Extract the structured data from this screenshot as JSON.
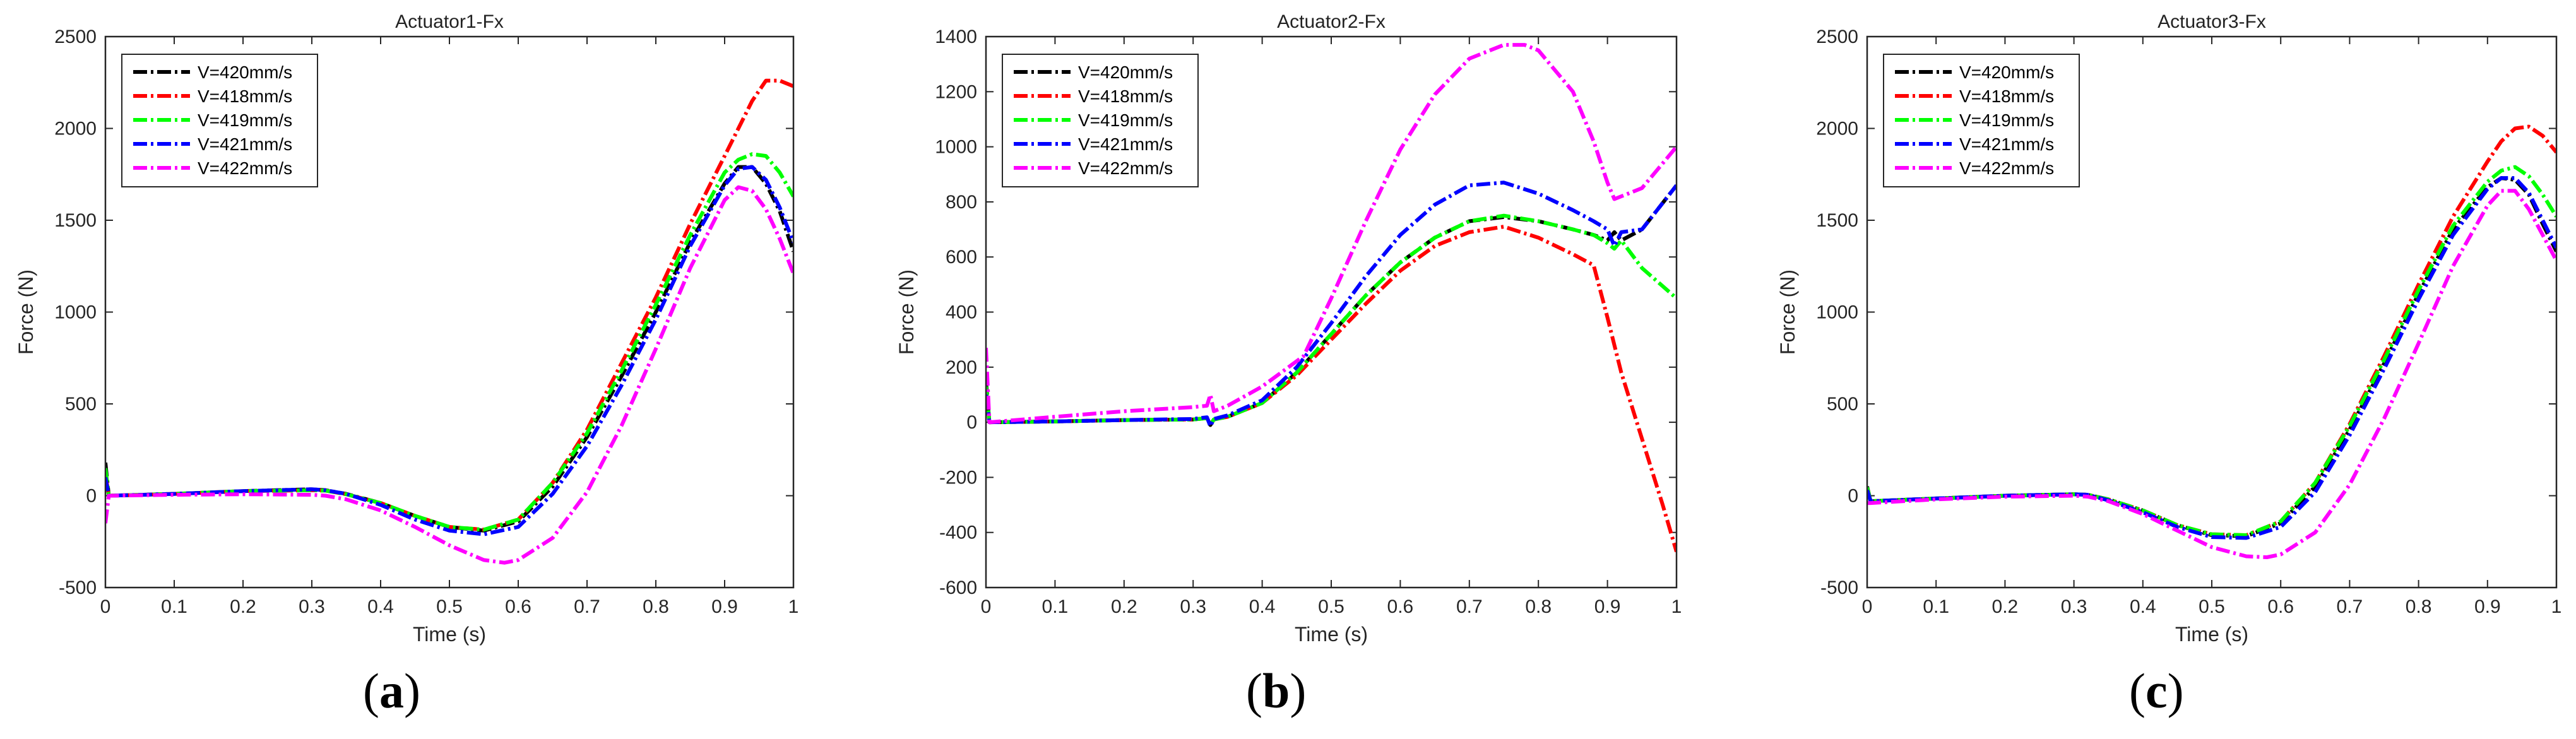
{
  "figure": {
    "captions": [
      {
        "letter": "a",
        "open": "(",
        "close": ")"
      },
      {
        "letter": "b",
        "open": "(",
        "close": ")"
      },
      {
        "letter": "c",
        "open": "(",
        "close": ")"
      }
    ]
  },
  "chart_data": [
    {
      "type": "line",
      "title": "Actuator1-Fx",
      "xlabel": "Time (s)",
      "ylabel": "Force (N)",
      "xlim": [
        0,
        1
      ],
      "ylim": [
        -500,
        2500
      ],
      "xticks": [
        0,
        0.1,
        0.2,
        0.3,
        0.4,
        0.5,
        0.6,
        0.7,
        0.8,
        0.9,
        1
      ],
      "xtick_labels": [
        "0",
        "0.1",
        "0.2",
        "0.3",
        "0.4",
        "0.5",
        "0.6",
        "0.7",
        "0.8",
        "0.9",
        "1"
      ],
      "yticks": [
        -500,
        0,
        500,
        1000,
        1500,
        2000,
        2500
      ],
      "ytick_labels": [
        "-500",
        "0",
        "500",
        "1000",
        "1500",
        "2000",
        "2500"
      ],
      "legend_position": "top-left",
      "series": [
        {
          "name": "V=420mm/s",
          "color": "#000000",
          "x": [
            0,
            0.005,
            0.1,
            0.2,
            0.3,
            0.32,
            0.35,
            0.4,
            0.45,
            0.5,
            0.55,
            0.6,
            0.65,
            0.7,
            0.75,
            0.8,
            0.85,
            0.9,
            0.92,
            0.94,
            0.96,
            0.98,
            1.0
          ],
          "y": [
            180,
            0,
            10,
            25,
            35,
            30,
            10,
            -40,
            -110,
            -170,
            -190,
            -140,
            50,
            320,
            650,
            1000,
            1380,
            1700,
            1790,
            1790,
            1700,
            1550,
            1330
          ]
        },
        {
          "name": "V=418mm/s",
          "color": "#ff0000",
          "x": [
            0,
            0.005,
            0.1,
            0.2,
            0.3,
            0.32,
            0.35,
            0.4,
            0.45,
            0.5,
            0.55,
            0.6,
            0.65,
            0.7,
            0.75,
            0.8,
            0.85,
            0.9,
            0.92,
            0.94,
            0.96,
            0.98,
            1.0
          ],
          "y": [
            120,
            0,
            10,
            25,
            30,
            28,
            8,
            -40,
            -110,
            -170,
            -185,
            -130,
            70,
            360,
            720,
            1080,
            1480,
            1850,
            2000,
            2150,
            2260,
            2260,
            2230
          ]
        },
        {
          "name": "V=419mm/s",
          "color": "#00ff00",
          "x": [
            0,
            0.005,
            0.1,
            0.2,
            0.3,
            0.32,
            0.35,
            0.4,
            0.45,
            0.5,
            0.55,
            0.6,
            0.65,
            0.7,
            0.75,
            0.8,
            0.85,
            0.9,
            0.92,
            0.94,
            0.96,
            0.98,
            1.0
          ],
          "y": [
            150,
            0,
            10,
            25,
            30,
            28,
            8,
            -40,
            -110,
            -170,
            -185,
            -130,
            70,
            340,
            680,
            1040,
            1420,
            1760,
            1830,
            1860,
            1850,
            1760,
            1630
          ]
        },
        {
          "name": "V=421mm/s",
          "color": "#0000ff",
          "x": [
            0,
            0.005,
            0.1,
            0.2,
            0.3,
            0.32,
            0.35,
            0.4,
            0.45,
            0.5,
            0.55,
            0.6,
            0.65,
            0.7,
            0.75,
            0.8,
            0.85,
            0.9,
            0.92,
            0.94,
            0.96,
            0.98,
            1.0
          ],
          "y": [
            100,
            0,
            10,
            25,
            35,
            30,
            10,
            -50,
            -130,
            -190,
            -210,
            -170,
            10,
            270,
            600,
            960,
            1360,
            1690,
            1780,
            1790,
            1720,
            1570,
            1380
          ]
        },
        {
          "name": "V=422mm/s",
          "color": "#ff00ff",
          "x": [
            0,
            0.005,
            0.1,
            0.2,
            0.3,
            0.32,
            0.35,
            0.4,
            0.45,
            0.5,
            0.55,
            0.58,
            0.6,
            0.65,
            0.7,
            0.75,
            0.8,
            0.85,
            0.9,
            0.92,
            0.94,
            0.96,
            0.98,
            1.0
          ],
          "y": [
            -150,
            0,
            5,
            8,
            5,
            0,
            -20,
            -80,
            -170,
            -270,
            -350,
            -365,
            -350,
            -230,
            20,
            380,
            800,
            1240,
            1610,
            1680,
            1660,
            1560,
            1400,
            1210
          ]
        }
      ]
    },
    {
      "type": "line",
      "title": "Actuator2-Fx",
      "xlabel": "Time (s)",
      "ylabel": "Force (N)",
      "xlim": [
        0,
        1
      ],
      "ylim": [
        -600,
        1400
      ],
      "xticks": [
        0,
        0.1,
        0.2,
        0.3,
        0.4,
        0.5,
        0.6,
        0.7,
        0.8,
        0.9,
        1
      ],
      "xtick_labels": [
        "0",
        "0.1",
        "0.2",
        "0.3",
        "0.4",
        "0.5",
        "0.6",
        "0.7",
        "0.8",
        "0.9",
        "1"
      ],
      "yticks": [
        -600,
        -400,
        -200,
        0,
        200,
        400,
        600,
        800,
        1000,
        1200,
        1400
      ],
      "ytick_labels": [
        "-600",
        "-400",
        "-200",
        "0",
        "200",
        "400",
        "600",
        "800",
        "1000",
        "1200",
        "1400"
      ],
      "legend_position": "top-left",
      "series": [
        {
          "name": "V=420mm/s",
          "color": "#000000",
          "x": [
            0,
            0.005,
            0.1,
            0.2,
            0.3,
            0.32,
            0.325,
            0.33,
            0.35,
            0.4,
            0.45,
            0.5,
            0.55,
            0.6,
            0.65,
            0.7,
            0.75,
            0.8,
            0.85,
            0.88,
            0.9,
            0.91,
            0.92,
            0.95,
            1.0
          ],
          "y": [
            150,
            0,
            3,
            8,
            10,
            15,
            -10,
            10,
            20,
            70,
            180,
            320,
            460,
            580,
            670,
            730,
            745,
            730,
            700,
            680,
            660,
            690,
            660,
            700,
            860
          ]
        },
        {
          "name": "V=418mm/s",
          "color": "#ff0000",
          "x": [
            0,
            0.005,
            0.1,
            0.2,
            0.3,
            0.32,
            0.325,
            0.33,
            0.35,
            0.4,
            0.45,
            0.5,
            0.55,
            0.6,
            0.65,
            0.7,
            0.75,
            0.8,
            0.85,
            0.88,
            0.9,
            0.92,
            0.95,
            0.98,
            1.0
          ],
          "y": [
            120,
            0,
            3,
            8,
            10,
            15,
            -5,
            10,
            20,
            70,
            170,
            300,
            430,
            550,
            640,
            690,
            710,
            670,
            610,
            570,
            380,
            180,
            -60,
            -300,
            -470
          ]
        },
        {
          "name": "V=419mm/s",
          "color": "#00ff00",
          "x": [
            0,
            0.005,
            0.1,
            0.2,
            0.3,
            0.32,
            0.325,
            0.33,
            0.35,
            0.4,
            0.45,
            0.5,
            0.55,
            0.6,
            0.65,
            0.7,
            0.75,
            0.8,
            0.85,
            0.88,
            0.9,
            0.91,
            0.92,
            0.95,
            1.0
          ],
          "y": [
            130,
            0,
            3,
            8,
            10,
            15,
            -8,
            10,
            20,
            70,
            180,
            320,
            460,
            580,
            670,
            730,
            750,
            730,
            700,
            680,
            650,
            630,
            660,
            560,
            450
          ]
        },
        {
          "name": "V=421mm/s",
          "color": "#0000ff",
          "x": [
            0,
            0.005,
            0.1,
            0.2,
            0.3,
            0.32,
            0.325,
            0.33,
            0.35,
            0.4,
            0.45,
            0.5,
            0.55,
            0.6,
            0.65,
            0.7,
            0.75,
            0.8,
            0.85,
            0.88,
            0.9,
            0.91,
            0.92,
            0.95,
            1.0
          ],
          "y": [
            100,
            0,
            3,
            8,
            12,
            18,
            -15,
            12,
            25,
            80,
            200,
            360,
            530,
            680,
            790,
            860,
            870,
            830,
            770,
            730,
            700,
            640,
            690,
            700,
            860
          ]
        },
        {
          "name": "V=422mm/s",
          "color": "#ff00ff",
          "x": [
            0,
            0.005,
            0.1,
            0.2,
            0.3,
            0.32,
            0.325,
            0.33,
            0.35,
            0.4,
            0.46,
            0.5,
            0.55,
            0.6,
            0.65,
            0.7,
            0.75,
            0.78,
            0.8,
            0.85,
            0.88,
            0.9,
            0.91,
            0.95,
            1.0
          ],
          "y": [
            270,
            0,
            20,
            40,
            55,
            60,
            100,
            40,
            60,
            130,
            240,
            450,
            730,
            990,
            1190,
            1320,
            1370,
            1370,
            1350,
            1200,
            1020,
            870,
            810,
            850,
            1000
          ]
        }
      ]
    },
    {
      "type": "line",
      "title": "Actuator3-Fx",
      "xlabel": "Time (s)",
      "ylabel": "Force (N)",
      "xlim": [
        0,
        1
      ],
      "ylim": [
        -500,
        2500
      ],
      "xticks": [
        0,
        0.1,
        0.2,
        0.3,
        0.4,
        0.5,
        0.6,
        0.7,
        0.8,
        0.9,
        1
      ],
      "xtick_labels": [
        "0",
        "0.1",
        "0.2",
        "0.3",
        "0.4",
        "0.5",
        "0.6",
        "0.7",
        "0.8",
        "0.9",
        "1"
      ],
      "yticks": [
        -500,
        0,
        500,
        1000,
        1500,
        2000,
        2500
      ],
      "ytick_labels": [
        "-500",
        "0",
        "500",
        "1000",
        "1500",
        "2000",
        "2500"
      ],
      "legend_position": "top-left",
      "series": [
        {
          "name": "V=420mm/s",
          "color": "#000000",
          "x": [
            0,
            0.005,
            0.1,
            0.2,
            0.3,
            0.32,
            0.35,
            0.4,
            0.45,
            0.5,
            0.55,
            0.6,
            0.65,
            0.7,
            0.75,
            0.8,
            0.85,
            0.9,
            0.92,
            0.94,
            0.96,
            0.98,
            1.0
          ],
          "y": [
            50,
            -30,
            -15,
            0,
            8,
            5,
            -20,
            -80,
            -160,
            -215,
            -220,
            -150,
            50,
            360,
            720,
            1100,
            1450,
            1680,
            1730,
            1720,
            1640,
            1480,
            1330
          ]
        },
        {
          "name": "V=418mm/s",
          "color": "#ff0000",
          "x": [
            0,
            0.005,
            0.1,
            0.2,
            0.3,
            0.32,
            0.35,
            0.4,
            0.45,
            0.5,
            0.55,
            0.6,
            0.65,
            0.7,
            0.75,
            0.8,
            0.85,
            0.9,
            0.92,
            0.94,
            0.96,
            0.98,
            1.0
          ],
          "y": [
            40,
            -30,
            -15,
            0,
            8,
            5,
            -20,
            -80,
            -160,
            -210,
            -215,
            -140,
            70,
            390,
            760,
            1150,
            1520,
            1820,
            1930,
            2000,
            2010,
            1960,
            1870
          ]
        },
        {
          "name": "V=419mm/s",
          "color": "#00ff00",
          "x": [
            0,
            0.005,
            0.1,
            0.2,
            0.3,
            0.32,
            0.35,
            0.4,
            0.45,
            0.5,
            0.55,
            0.6,
            0.65,
            0.7,
            0.75,
            0.8,
            0.85,
            0.9,
            0.92,
            0.94,
            0.96,
            0.98,
            1.0
          ],
          "y": [
            45,
            -30,
            -15,
            0,
            8,
            5,
            -20,
            -80,
            -160,
            -210,
            -215,
            -140,
            70,
            380,
            740,
            1120,
            1470,
            1710,
            1770,
            1790,
            1740,
            1640,
            1520
          ]
        },
        {
          "name": "V=421mm/s",
          "color": "#0000ff",
          "x": [
            0,
            0.005,
            0.1,
            0.2,
            0.3,
            0.32,
            0.35,
            0.4,
            0.45,
            0.5,
            0.55,
            0.6,
            0.65,
            0.7,
            0.75,
            0.8,
            0.85,
            0.9,
            0.92,
            0.94,
            0.96,
            0.98,
            1.0
          ],
          "y": [
            30,
            -30,
            -15,
            0,
            8,
            5,
            -25,
            -90,
            -170,
            -225,
            -230,
            -170,
            20,
            330,
            690,
            1070,
            1420,
            1670,
            1730,
            1730,
            1650,
            1500,
            1350
          ]
        },
        {
          "name": "V=422mm/s",
          "color": "#ff00ff",
          "x": [
            0,
            0.005,
            0.1,
            0.2,
            0.3,
            0.32,
            0.35,
            0.4,
            0.45,
            0.5,
            0.55,
            0.58,
            0.6,
            0.65,
            0.7,
            0.75,
            0.8,
            0.85,
            0.9,
            0.92,
            0.94,
            0.96,
            0.98,
            1.0
          ],
          "y": [
            -40,
            -40,
            -20,
            -5,
            0,
            -5,
            -30,
            -100,
            -190,
            -280,
            -330,
            -335,
            -320,
            -200,
            60,
            420,
            830,
            1250,
            1580,
            1660,
            1660,
            1560,
            1420,
            1280
          ]
        }
      ]
    }
  ]
}
